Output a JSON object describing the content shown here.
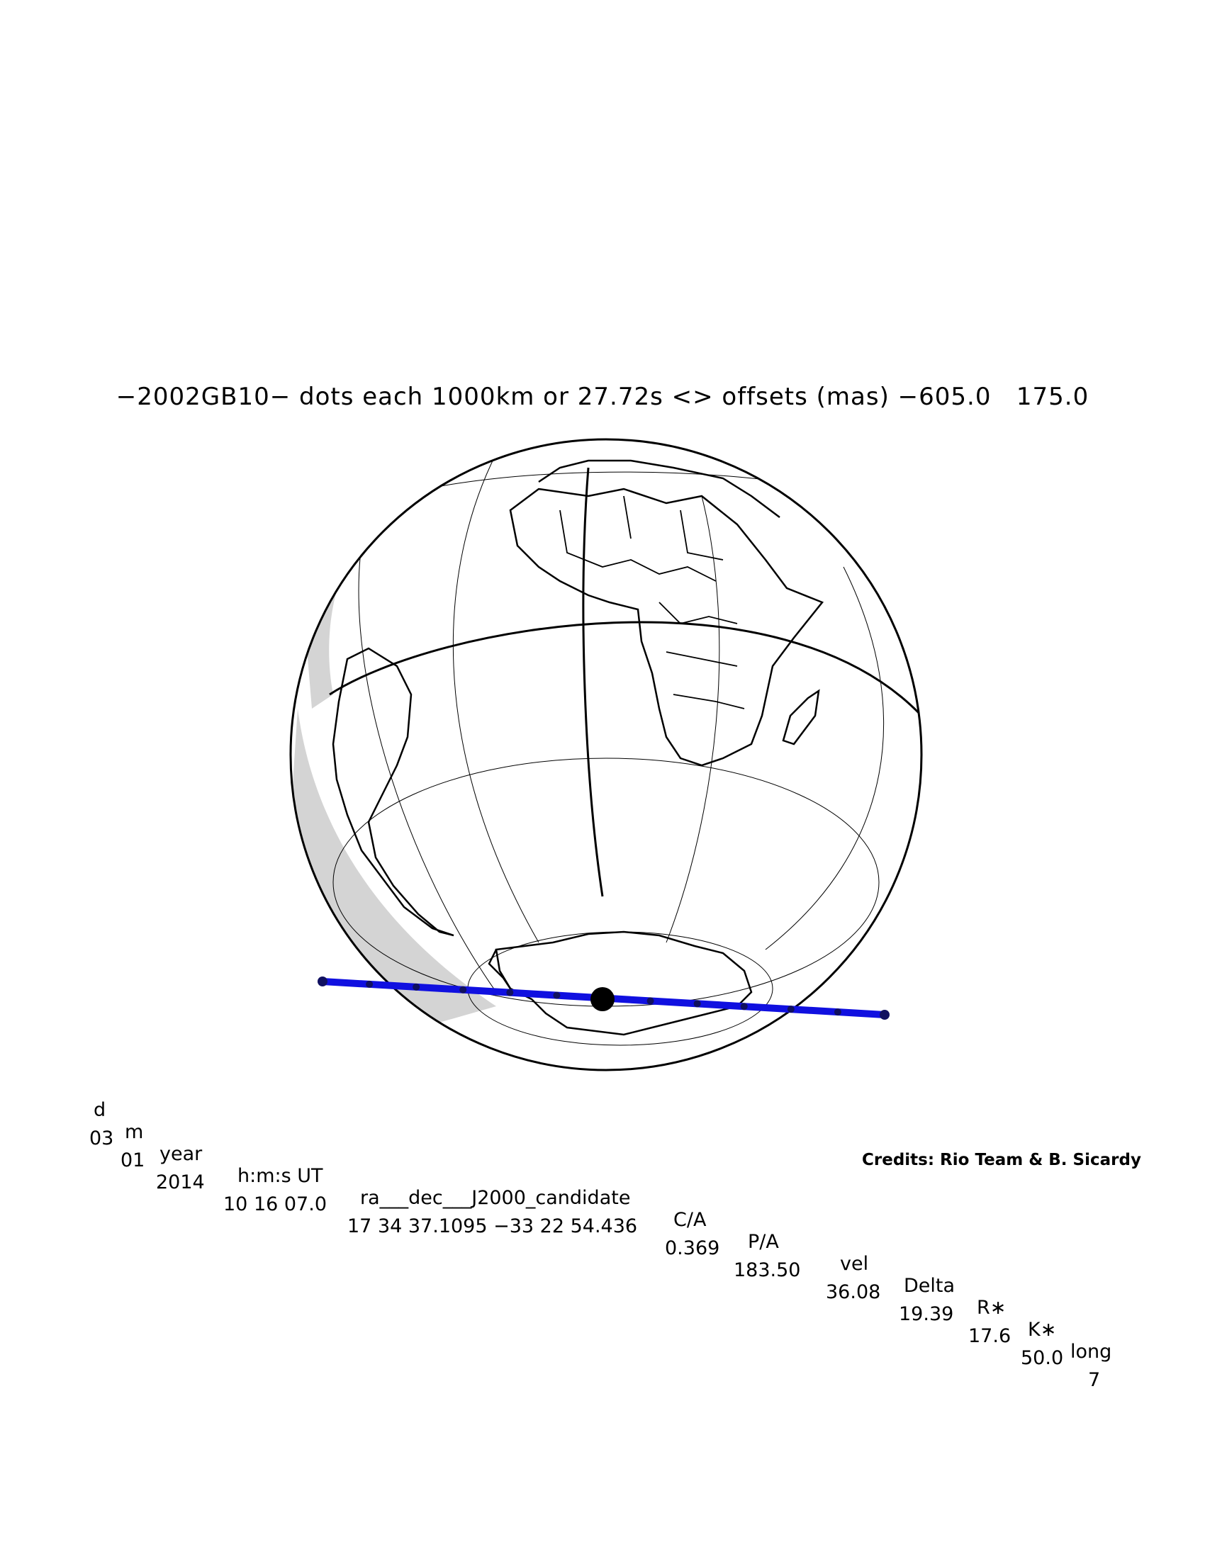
{
  "title": "−2002GB10− dots each 1000km or 27.72s <> offsets (mas) −605.0   175.0",
  "map": {
    "object": "2002GB10",
    "dot_spacing_km": 1000,
    "dot_spacing_s": 27.72,
    "offset_ra_mas": -605.0,
    "offset_dec_mas": 175.0,
    "projection": "orthographic",
    "shadow_path_color": "#1010e0",
    "track_dots": 13,
    "closest_approach_dot_index": 6,
    "land_outline_color": "#000000",
    "night_shade_color": "#d4d4d4"
  },
  "table": {
    "headers": [
      "d",
      "m",
      "year",
      "h:m:s UT",
      "ra___dec___J2000_candidate",
      "C/A",
      "P/A",
      "vel",
      "Delta",
      "R∗",
      "K∗",
      "long"
    ],
    "values": [
      "03",
      "01",
      "2014",
      "10 16 07.0",
      "17 34 37.1095 −33 22 54.436",
      "0.369",
      "183.50",
      "36.08",
      "19.39",
      "17.6",
      "50.0",
      "7"
    ]
  },
  "credits": "Credits: Rio Team & B. Sicardy"
}
